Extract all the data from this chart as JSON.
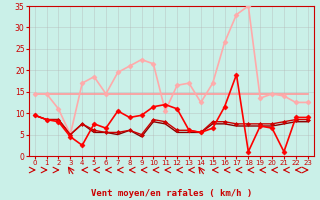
{
  "xlabel": "Vent moyen/en rafales ( km/h )",
  "bg_color": "#caf0e8",
  "grid_color": "#b0b0b0",
  "xlim": [
    -0.5,
    23.5
  ],
  "ylim": [
    0,
    35
  ],
  "yticks": [
    0,
    5,
    10,
    15,
    20,
    25,
    30,
    35
  ],
  "xticks": [
    0,
    1,
    2,
    3,
    4,
    5,
    6,
    7,
    8,
    9,
    10,
    11,
    12,
    13,
    14,
    15,
    16,
    17,
    18,
    19,
    20,
    21,
    22,
    23
  ],
  "series": [
    {
      "y": [
        14.5,
        14.5,
        14.5,
        14.5,
        14.5,
        14.5,
        14.5,
        14.5,
        14.5,
        14.5,
        14.5,
        14.5,
        14.5,
        14.5,
        14.5,
        14.5,
        14.5,
        14.5,
        14.5,
        14.5,
        14.5,
        14.5,
        14.5,
        14.5
      ],
      "color": "#ff9999",
      "lw": 1.2,
      "marker": null,
      "zorder": 2
    },
    {
      "y": [
        9.5,
        8.5,
        8.5,
        5.0,
        7.5,
        6.0,
        5.5,
        5.5,
        6.0,
        5.0,
        8.5,
        8.0,
        6.0,
        6.0,
        5.5,
        8.0,
        8.0,
        7.5,
        7.5,
        7.5,
        7.5,
        8.0,
        8.5,
        8.5
      ],
      "color": "#cc0000",
      "lw": 1.0,
      "marker": "D",
      "ms": 2.0,
      "zorder": 4
    },
    {
      "y": [
        9.5,
        8.5,
        8.5,
        5.0,
        7.5,
        5.5,
        5.5,
        5.0,
        6.0,
        4.5,
        8.0,
        7.5,
        5.5,
        5.5,
        5.5,
        7.5,
        7.5,
        7.0,
        7.0,
        7.0,
        7.0,
        7.5,
        8.0,
        8.0
      ],
      "color": "#880000",
      "lw": 1.0,
      "marker": null,
      "zorder": 3
    },
    {
      "y": [
        9.5,
        8.5,
        8.0,
        4.5,
        2.5,
        7.5,
        6.5,
        10.5,
        9.0,
        9.5,
        11.5,
        12.0,
        11.0,
        6.0,
        5.5,
        6.5,
        11.5,
        19.0,
        1.0,
        7.0,
        6.5,
        1.0,
        9.0,
        9.0
      ],
      "color": "#ff0000",
      "lw": 1.2,
      "marker": "D",
      "ms": 2.5,
      "zorder": 5
    },
    {
      "y": [
        14.5,
        14.5,
        11.0,
        5.0,
        17.0,
        18.5,
        14.5,
        19.5,
        21.0,
        22.5,
        21.5,
        10.5,
        16.5,
        17.0,
        12.5,
        17.0,
        26.5,
        33.0,
        35.0,
        13.5,
        14.5,
        14.0,
        12.5,
        12.5
      ],
      "color": "#ffaaaa",
      "lw": 1.2,
      "marker": "D",
      "ms": 2.5,
      "zorder": 3
    }
  ],
  "arrows": {
    "directions": [
      1,
      1,
      1,
      4,
      3,
      3,
      3,
      3,
      3,
      3,
      3,
      3,
      3,
      3,
      4,
      3,
      3,
      3,
      3,
      3,
      3,
      3,
      3,
      1
    ],
    "color": "#cc0000"
  }
}
